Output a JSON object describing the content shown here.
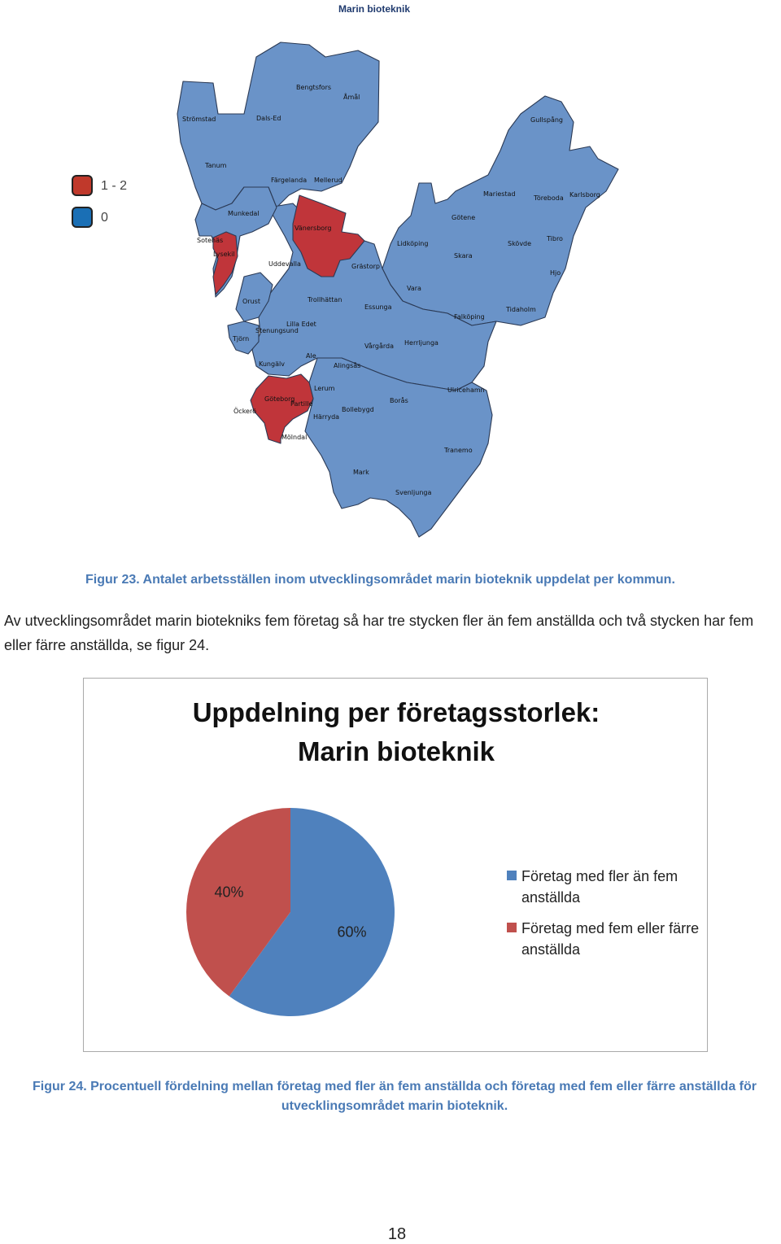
{
  "map": {
    "title": "Marin bioteknik",
    "legend": [
      {
        "label": "1 - 2",
        "color": "#c0392b"
      },
      {
        "label": "0",
        "color": "#1a6fb5"
      }
    ],
    "colors": {
      "blue": "#6a93c8",
      "red": "#c0353a",
      "border": "#2b3a55"
    },
    "labels": [
      "Strömstad",
      "Bengtsfors",
      "Åmål",
      "Dals-Ed",
      "Gullspång",
      "Tanum",
      "Färgelanda",
      "Mellerud",
      "Mariestad",
      "Töreboda",
      "Karlsborg",
      "Munkedal",
      "Vänersborg",
      "Götene",
      "Sotenäs",
      "Lysekil",
      "Lidköping",
      "Skövde",
      "Tibro",
      "Uddevalla",
      "Grästorp",
      "Skara",
      "Hjo",
      "Orust",
      "Trollhättan",
      "Vara",
      "Essunga",
      "Tidaholm",
      "Falköping",
      "Lilla Edet",
      "Stenungsund",
      "Tjörn",
      "Ale",
      "Vårgårda",
      "Herrljunga",
      "Kungälv",
      "Alingsås",
      "Lerum",
      "Ulricehamn",
      "Göteborg",
      "Partille",
      "Borås",
      "Öckerö",
      "Bollebygd",
      "Härryda",
      "Mölndal",
      "Tranemo",
      "Mark",
      "Svenljunga"
    ]
  },
  "figure23_caption": "Figur 23. Antalet arbetsställen inom utvecklingsområdet marin bioteknik uppdelat per kommun.",
  "body_text": "Av utvecklingsområdet marin biotekniks fem företag så har tre stycken fler än fem anställda och två stycken har fem eller färre anställda, se figur 24.",
  "chart_data": {
    "type": "pie",
    "title_line1": "Uppdelning per företagsstorlek:",
    "title_line2": "Marin bioteknik",
    "series": [
      {
        "name": "Företag med fler än fem anställda",
        "value": 60,
        "label": "60%",
        "color": "#4f81bd"
      },
      {
        "name": "Företag med fem eller färre anställda",
        "value": 40,
        "label": "40%",
        "color": "#c0504d"
      }
    ],
    "legend_position": "right"
  },
  "figure24_caption": "Figur 24. Procentuell fördelning mellan företag med fler än fem anställda och företag med fem eller färre anställda för utvecklingsområdet marin bioteknik.",
  "page_number": "18"
}
